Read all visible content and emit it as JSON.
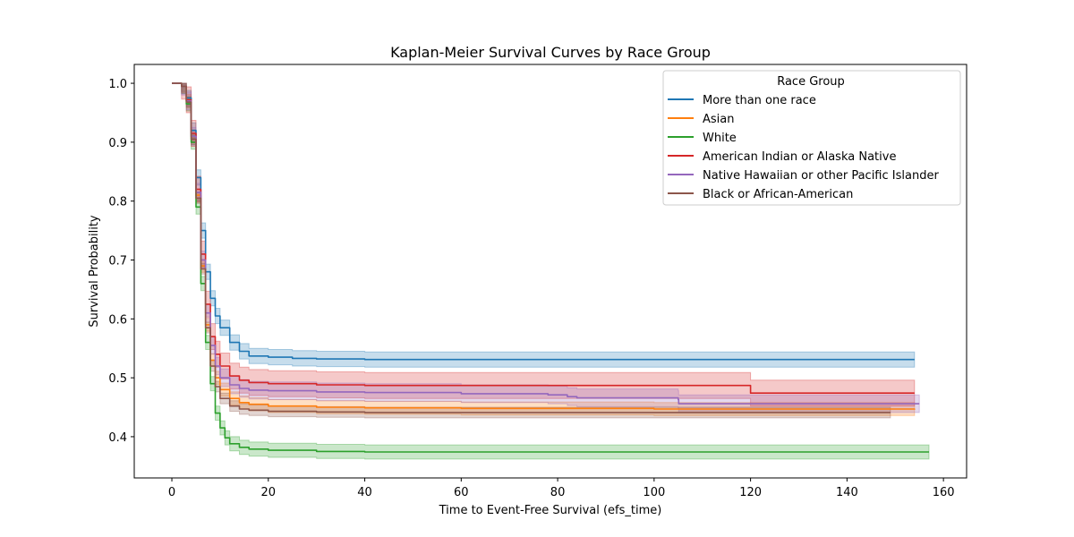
{
  "chart_data": {
    "type": "line",
    "title": "Kaplan-Meier Survival Curves by Race Group",
    "xlabel": "Time to Event-Free Survival (efs_time)",
    "ylabel": "Survival Probability",
    "xlim": [
      -7.8,
      164.8
    ],
    "ylim": [
      0.33,
      1.032
    ],
    "x_ticks": [
      0,
      20,
      40,
      60,
      80,
      100,
      120,
      140,
      160
    ],
    "y_ticks": [
      0.4,
      0.5,
      0.6,
      0.7,
      0.8,
      0.9,
      1.0
    ],
    "x_tick_labels": [
      "0",
      "20",
      "40",
      "60",
      "80",
      "100",
      "120",
      "140",
      "160"
    ],
    "y_tick_labels": [
      "0.4",
      "0.5",
      "0.6",
      "0.7",
      "0.8",
      "0.9",
      "1.0"
    ],
    "grid": false,
    "legend": {
      "title": "Race Group",
      "placement": "top-right"
    },
    "series": [
      {
        "name": "More than one race",
        "color": "#1f77b4",
        "x": [
          0,
          2,
          3,
          4,
          5,
          6,
          7,
          8,
          9,
          10,
          12,
          14,
          16,
          20,
          25,
          30,
          40,
          60,
          100,
          154
        ],
        "y": [
          1.0,
          0.995,
          0.975,
          0.92,
          0.84,
          0.75,
          0.68,
          0.635,
          0.605,
          0.585,
          0.56,
          0.545,
          0.537,
          0.535,
          0.533,
          0.532,
          0.531,
          0.531,
          0.531,
          0.531
        ],
        "band": 0.013
      },
      {
        "name": "Asian",
        "color": "#ff7f0e",
        "x": [
          0,
          2,
          3,
          4,
          5,
          6,
          7,
          8,
          9,
          10,
          12,
          14,
          16,
          20,
          30,
          40,
          60,
          100,
          154
        ],
        "y": [
          1.0,
          0.995,
          0.97,
          0.91,
          0.81,
          0.69,
          0.59,
          0.53,
          0.5,
          0.48,
          0.465,
          0.458,
          0.455,
          0.452,
          0.45,
          0.449,
          0.448,
          0.447,
          0.446
        ],
        "band": 0.011
      },
      {
        "name": "White",
        "color": "#2ca02c",
        "x": [
          0,
          2,
          3,
          4,
          5,
          6,
          7,
          8,
          9,
          10,
          11,
          12,
          14,
          16,
          20,
          30,
          40,
          60,
          100,
          157
        ],
        "y": [
          1.0,
          0.995,
          0.965,
          0.9,
          0.79,
          0.66,
          0.56,
          0.49,
          0.44,
          0.415,
          0.398,
          0.388,
          0.382,
          0.379,
          0.377,
          0.375,
          0.374,
          0.374,
          0.374,
          0.374
        ],
        "band": 0.012
      },
      {
        "name": "American Indian or Alaska Native",
        "color": "#d62728",
        "x": [
          0,
          2,
          3,
          4,
          5,
          6,
          7,
          8,
          9,
          10,
          12,
          14,
          16,
          20,
          30,
          40,
          60,
          100,
          119.9,
          120,
          154
        ],
        "y": [
          1.0,
          0.995,
          0.972,
          0.915,
          0.82,
          0.71,
          0.625,
          0.57,
          0.54,
          0.52,
          0.503,
          0.496,
          0.492,
          0.49,
          0.488,
          0.487,
          0.487,
          0.487,
          0.487,
          0.474,
          0.474
        ],
        "band": 0.022
      },
      {
        "name": "Native Hawaiian or other Pacific Islander",
        "color": "#9467bd",
        "x": [
          0,
          2,
          3,
          4,
          5,
          6,
          7,
          8,
          9,
          10,
          12,
          14,
          16,
          20,
          30,
          40,
          60,
          78,
          82,
          84,
          105,
          105.1,
          155
        ],
        "y": [
          1.0,
          0.995,
          0.97,
          0.91,
          0.815,
          0.7,
          0.61,
          0.555,
          0.52,
          0.5,
          0.488,
          0.482,
          0.479,
          0.478,
          0.476,
          0.475,
          0.473,
          0.471,
          0.468,
          0.466,
          0.463,
          0.456,
          0.456
        ],
        "band": 0.015
      },
      {
        "name": "Black or African-American",
        "color": "#8c564b",
        "x": [
          0,
          2,
          3,
          4,
          5,
          6,
          7,
          8,
          9,
          10,
          12,
          14,
          16,
          20,
          30,
          40,
          60,
          100,
          149
        ],
        "y": [
          1.0,
          0.995,
          0.968,
          0.905,
          0.805,
          0.685,
          0.585,
          0.52,
          0.485,
          0.465,
          0.452,
          0.447,
          0.445,
          0.443,
          0.442,
          0.441,
          0.441,
          0.441,
          0.441
        ],
        "band": 0.009
      }
    ]
  }
}
